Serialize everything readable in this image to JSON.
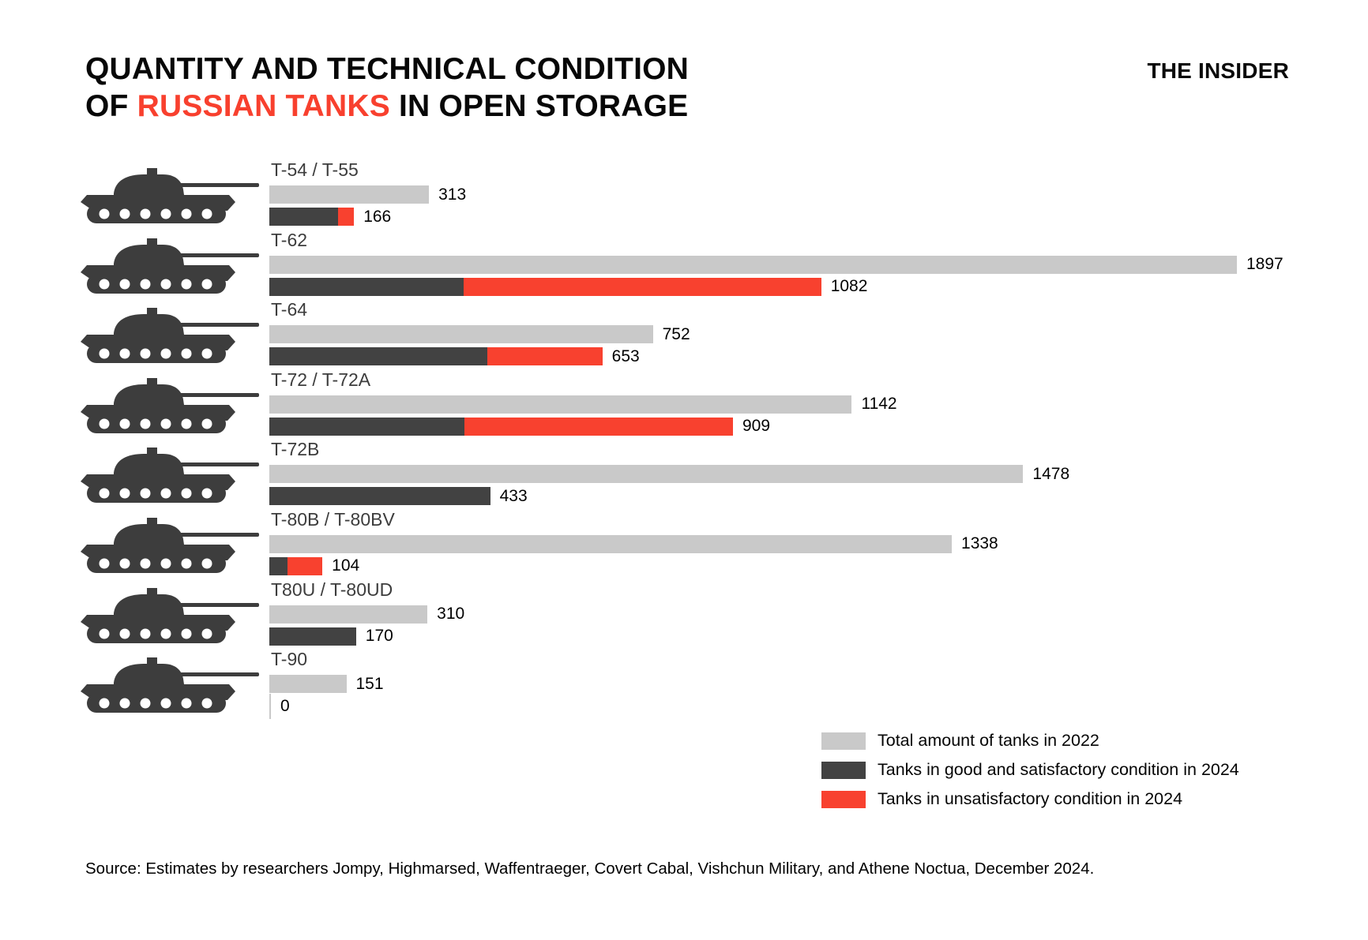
{
  "header": {
    "title_line1": "QUANTITY AND TECHNICAL CONDITION",
    "title_line2_prefix": "OF ",
    "title_line2_highlight": "RUSSIAN TANKS",
    "title_line2_suffix": " IN OPEN STORAGE",
    "brand": "THE INSIDER"
  },
  "colors": {
    "total_2022": "#c9c9c9",
    "good_2024": "#424242",
    "unsat_2024": "#f8412f",
    "title_highlight": "#f8402e",
    "category_text": "#3d3d3d",
    "zero_tick": "#c9c9c9",
    "tank_silhouette": "#3d3d3d"
  },
  "icons": {
    "row_icon": "tank-silhouette-icon"
  },
  "chart_data": {
    "type": "bar",
    "orientation": "horizontal",
    "title": "QUANTITY AND TECHNICAL CONDITION OF RUSSIAN TANKS IN OPEN STORAGE",
    "categories": [
      "T-54 / T-55",
      "T-62",
      "T-64",
      "T-72 / T-72A",
      "T-72B",
      "T-80B / T-80BV",
      "T80U / T-80UD",
      "T-90"
    ],
    "series": [
      {
        "name": "Total amount of tanks in 2022",
        "color": "#c9c9c9",
        "values": [
          313,
          1897,
          752,
          1142,
          1478,
          1338,
          310,
          151
        ]
      },
      {
        "name": "Tanks in good and satisfactory condition in 2024",
        "color": "#424242",
        "values": [
          134,
          381,
          427,
          382,
          433,
          35,
          170,
          0
        ]
      },
      {
        "name": "Tanks in unsatisfactory condition in 2024",
        "color": "#f8412f",
        "values": [
          32,
          701,
          226,
          527,
          0,
          69,
          0,
          0
        ]
      }
    ],
    "total_2022_labels": [
      "313",
      "1897",
      "752",
      "1142",
      "1478",
      "1338",
      "310",
      "151"
    ],
    "stacked_2024_totals_labels": [
      "166",
      "1082",
      "653",
      "909",
      "433",
      "104",
      "170",
      "0"
    ],
    "x_max": 1897,
    "grid": false,
    "value_labels_shown": true,
    "legend_position": "bottom-right"
  },
  "legend": {
    "items": [
      {
        "color_key": "total_2022",
        "label": "Total amount of tanks in 2022"
      },
      {
        "color_key": "good_2024",
        "label": "Tanks in good and satisfactory condition in 2024"
      },
      {
        "color_key": "unsat_2024",
        "label": "Tanks in unsatisfactory condition in 2024"
      }
    ]
  },
  "source": "Source: Estimates by researchers Jompy, Highmarsed, Waffentraeger, Covert Cabal, Vishchun Military, and Athene Noctua, December 2024."
}
